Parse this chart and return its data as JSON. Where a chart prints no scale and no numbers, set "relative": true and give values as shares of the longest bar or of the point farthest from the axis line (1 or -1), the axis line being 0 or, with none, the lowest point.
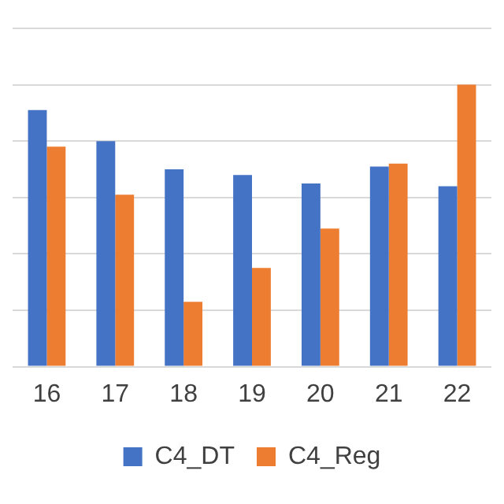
{
  "chart_data": {
    "type": "bar",
    "relative": true,
    "grid": "y",
    "legend": "bottom",
    "categories": [
      "16",
      "17",
      "18",
      "19",
      "20",
      "21",
      "22"
    ],
    "series": [
      {
        "name": "C4_DT",
        "color": "#4472c4",
        "values": [
          0.91,
          0.8,
          0.7,
          0.68,
          0.65,
          0.71,
          0.64
        ]
      },
      {
        "name": "C4_Reg",
        "color": "#ed7d31",
        "values": [
          0.78,
          0.61,
          0.23,
          0.35,
          0.49,
          0.72,
          1
        ]
      }
    ]
  }
}
